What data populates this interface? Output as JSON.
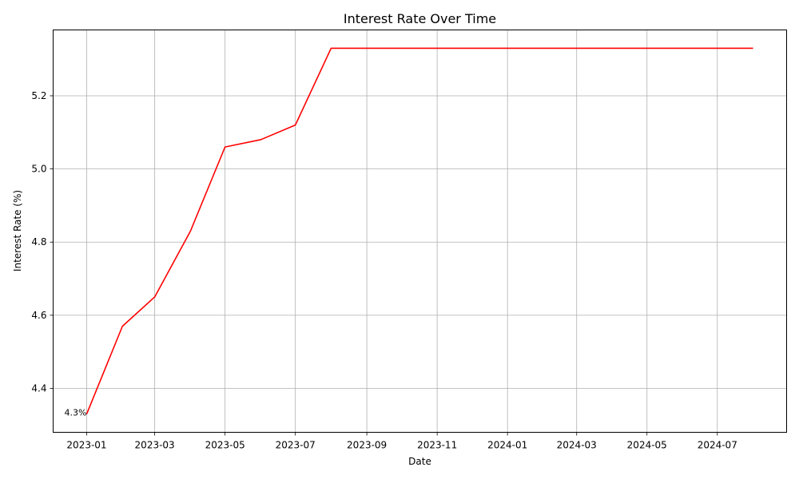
{
  "chart_data": {
    "type": "line",
    "title": "Interest Rate Over Time",
    "xlabel": "Date",
    "ylabel": "Interest Rate (%)",
    "x": [
      "2023-01",
      "2023-02",
      "2023-03",
      "2023-04",
      "2023-05",
      "2023-06",
      "2023-07",
      "2023-08",
      "2023-09",
      "2023-10",
      "2023-11",
      "2023-12",
      "2024-01",
      "2024-02",
      "2024-03",
      "2024-04",
      "2024-05",
      "2024-06",
      "2024-07",
      "2024-08"
    ],
    "series": [
      {
        "values": [
          4.33,
          4.57,
          4.65,
          4.83,
          5.06,
          5.08,
          5.12,
          5.33,
          5.33,
          5.33,
          5.33,
          5.33,
          5.33,
          5.33,
          5.33,
          5.33,
          5.33,
          5.33,
          5.33,
          5.33
        ],
        "color": "#ff0000"
      }
    ],
    "x_ticks": [
      "2023-01",
      "2023-03",
      "2023-05",
      "2023-07",
      "2023-09",
      "2023-11",
      "2024-01",
      "2024-03",
      "2024-05",
      "2024-07"
    ],
    "y_ticks": [
      4.4,
      4.6,
      4.8,
      5.0,
      5.2
    ],
    "ylim": [
      4.28,
      5.38
    ],
    "grid": true,
    "annotations": [
      {
        "text": "4.3%",
        "x": "2023-01",
        "y": 4.33
      }
    ]
  }
}
